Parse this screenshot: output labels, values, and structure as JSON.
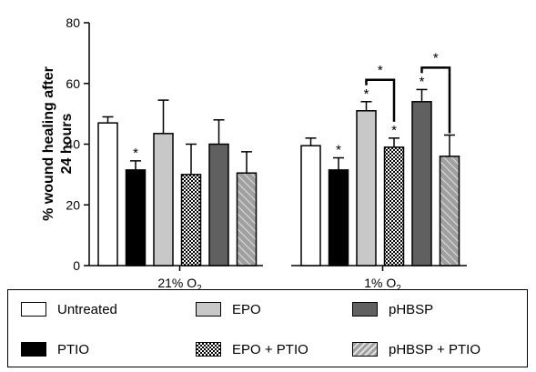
{
  "chart_data": {
    "type": "bar",
    "ylabel_lines": [
      "% wound healing after",
      "24 hours"
    ],
    "ylim": [
      0,
      80
    ],
    "yticks": [
      0,
      20,
      40,
      60,
      80
    ],
    "groups": [
      {
        "label": "21% O",
        "label_sub": "2",
        "bars": [
          {
            "series": "Untreated",
            "value": 47,
            "error": 2,
            "star": false
          },
          {
            "series": "PTIO",
            "value": 31.5,
            "error": 3,
            "star": true
          },
          {
            "series": "EPO",
            "value": 43.5,
            "error": 11,
            "star": false
          },
          {
            "series": "EPO + PTIO",
            "value": 30,
            "error": 10,
            "star": false
          },
          {
            "series": "pHBSP",
            "value": 40,
            "error": 8,
            "star": false
          },
          {
            "series": "pHBSP + PTIO",
            "value": 30.5,
            "error": 7,
            "star": false
          }
        ],
        "brackets": []
      },
      {
        "label": "1% O",
        "label_sub": "2",
        "bars": [
          {
            "series": "Untreated",
            "value": 39.5,
            "error": 2.5,
            "star": false
          },
          {
            "series": "PTIO",
            "value": 31.5,
            "error": 4,
            "star": true
          },
          {
            "series": "EPO",
            "value": 51,
            "error": 3,
            "star": true
          },
          {
            "series": "EPO + PTIO",
            "value": 39,
            "error": 3,
            "star": true
          },
          {
            "series": "pHBSP",
            "value": 54,
            "error": 4,
            "star": true
          },
          {
            "series": "pHBSP + PTIO",
            "value": 36,
            "error": 7,
            "star": false
          }
        ],
        "brackets": [
          {
            "from": 2,
            "to": 3,
            "label": "*"
          },
          {
            "from": 4,
            "to": 5,
            "label": "*"
          }
        ]
      }
    ],
    "series": [
      {
        "name": "Untreated",
        "fill": "#ffffff",
        "pattern": "none"
      },
      {
        "name": "PTIO",
        "fill": "#000000",
        "pattern": "none"
      },
      {
        "name": "EPO",
        "fill": "#c8c8c8",
        "pattern": "none"
      },
      {
        "name": "EPO + PTIO",
        "fill": "#ffffff",
        "pattern": "checker"
      },
      {
        "name": "pHBSP",
        "fill": "#606060",
        "pattern": "none"
      },
      {
        "name": "pHBSP + PTIO",
        "fill": "#a0a0a0",
        "pattern": "hatch"
      }
    ],
    "grid": false,
    "legend_position": "bottom"
  }
}
